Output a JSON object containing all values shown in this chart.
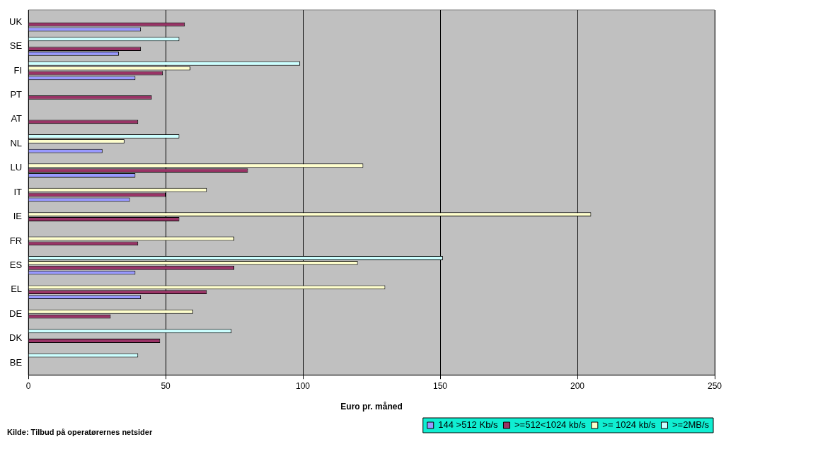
{
  "chart_data": {
    "type": "bar",
    "orientation": "horizontal",
    "xlabel": "Euro pr. måned",
    "categories": [
      "UK",
      "SE",
      "FI",
      "PT",
      "AT",
      "NL",
      "LU",
      "IT",
      "IE",
      "FR",
      "ES",
      "EL",
      "DE",
      "DK",
      "BE"
    ],
    "series": [
      {
        "name": "144 >512 Kb/s",
        "color": "#9999ff",
        "values": [
          41,
          33,
          39,
          null,
          null,
          27,
          39,
          37,
          null,
          null,
          39,
          41,
          null,
          null,
          null
        ]
      },
      {
        "name": ">=512<1024 kb/s",
        "color": "#993366",
        "values": [
          57,
          41,
          49,
          45,
          40,
          null,
          80,
          50,
          55,
          40,
          75,
          65,
          30,
          48,
          null
        ]
      },
      {
        "name": ">= 1024 kb/s",
        "color": "#ffffcc",
        "values": [
          null,
          null,
          59,
          null,
          null,
          35,
          122,
          65,
          205,
          75,
          120,
          130,
          60,
          null,
          null
        ]
      },
      {
        "name": ">=2MB/s",
        "color": "#ccffff",
        "values": [
          null,
          55,
          99,
          null,
          null,
          55,
          null,
          null,
          null,
          null,
          151,
          null,
          null,
          74,
          40
        ]
      }
    ],
    "xlim": [
      0,
      250
    ],
    "xticks": [
      0,
      50,
      100,
      150,
      200,
      250
    ],
    "grid": "x",
    "legend": "bottom right",
    "annotations": [
      "Kilde: Tilbud på operatørernes netsider"
    ]
  }
}
